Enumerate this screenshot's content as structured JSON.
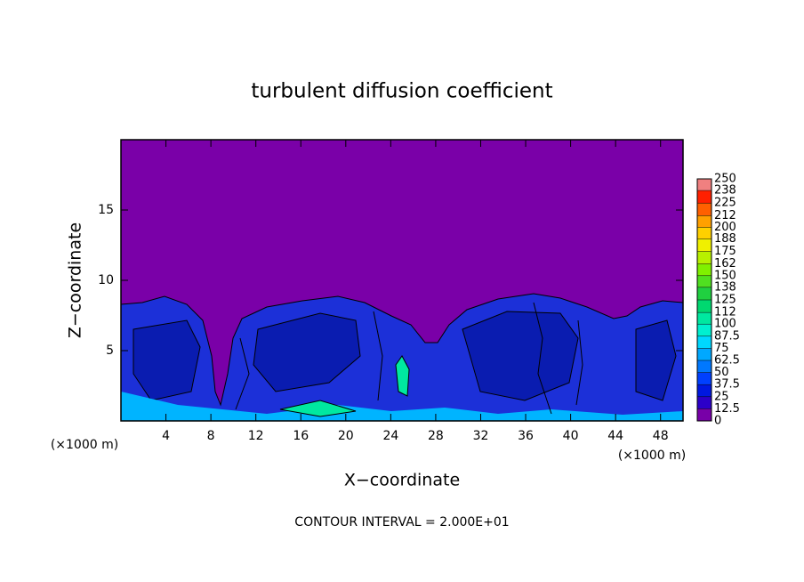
{
  "chart_data": {
    "type": "contour",
    "title": "turbulent diffusion coefficient",
    "xlabel": "X−coordinate",
    "ylabel": "Z−coordinate",
    "x_unit_label": "(×1000 m)",
    "annotation": "CONTOUR INTERVAL = 2.000E+01",
    "xlim": [
      0,
      50
    ],
    "xticks": [
      4,
      8,
      12,
      16,
      20,
      24,
      28,
      32,
      36,
      40,
      44,
      48
    ],
    "ylim": [
      0,
      20
    ],
    "yticks": [
      5,
      10,
      15
    ],
    "colorbar": {
      "levels": [
        0,
        12.5,
        25,
        37.5,
        50,
        62.5,
        75,
        87.5,
        100,
        112,
        125,
        138,
        150,
        162,
        175,
        188,
        200,
        212,
        225,
        238,
        250
      ],
      "colors": [
        "#7800a8",
        "#2c00c8",
        "#0018e0",
        "#0040ff",
        "#0078ff",
        "#00a8ff",
        "#00d8ff",
        "#00f0d0",
        "#00e8a0",
        "#00d870",
        "#20d040",
        "#50e020",
        "#80f000",
        "#b8f000",
        "#f0f000",
        "#ffd000",
        "#ffa000",
        "#ff6000",
        "#ff2000",
        "#f08080"
      ]
    }
  }
}
